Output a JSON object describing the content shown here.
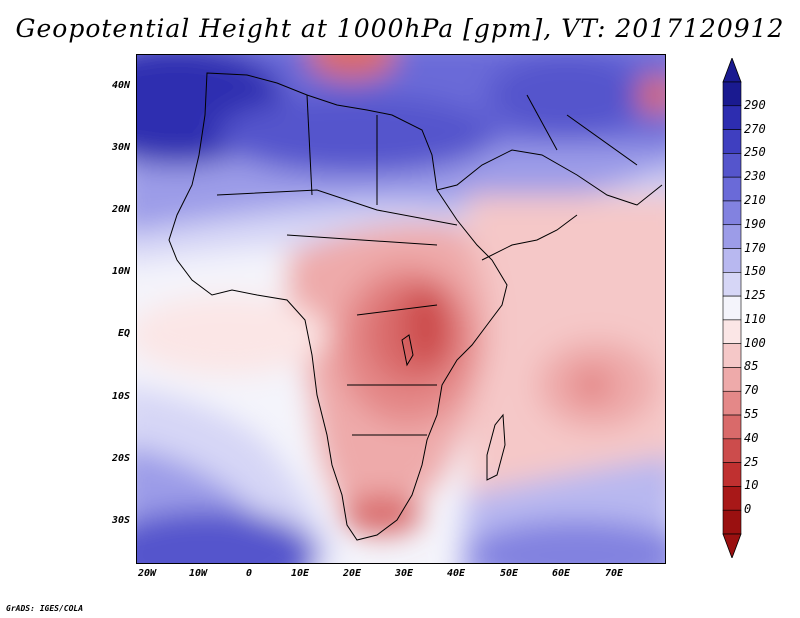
{
  "title": "Geopotential Height at 1000hPa [gpm], VT: 2017120912",
  "credit": "GrADS: IGES/COLA",
  "map": {
    "region": "Africa and Middle East",
    "lon_range": [
      -24,
      80
    ],
    "lat_range": [
      -37,
      45
    ],
    "x_ticks": [
      "20W",
      "10W",
      "0",
      "10E",
      "20E",
      "30E",
      "40E",
      "50E",
      "60E",
      "70E"
    ],
    "y_ticks": [
      "40N",
      "30N",
      "20N",
      "10N",
      "EQ",
      "10S",
      "20S",
      "30S"
    ]
  },
  "colorbar": {
    "levels": [
      "290",
      "270",
      "250",
      "230",
      "210",
      "190",
      "170",
      "150",
      "125",
      "110",
      "100",
      "85",
      "70",
      "55",
      "40",
      "25",
      "10",
      "0"
    ],
    "colors": [
      "#1a1a90",
      "#2d2db0",
      "#3f3fc0",
      "#5555cc",
      "#6a6ad8",
      "#8282e0",
      "#9c9ce8",
      "#b8b8f0",
      "#d6d6f6",
      "#f4f4fb",
      "#fbe6e6",
      "#f5c8c8",
      "#eeaaaa",
      "#e48888",
      "#d96a6a",
      "#cc4c4c",
      "#c03030",
      "#a81818",
      "#9a1010"
    ],
    "top_arrow_color": "#1a1a90",
    "bottom_arrow_color": "#9a1010"
  }
}
